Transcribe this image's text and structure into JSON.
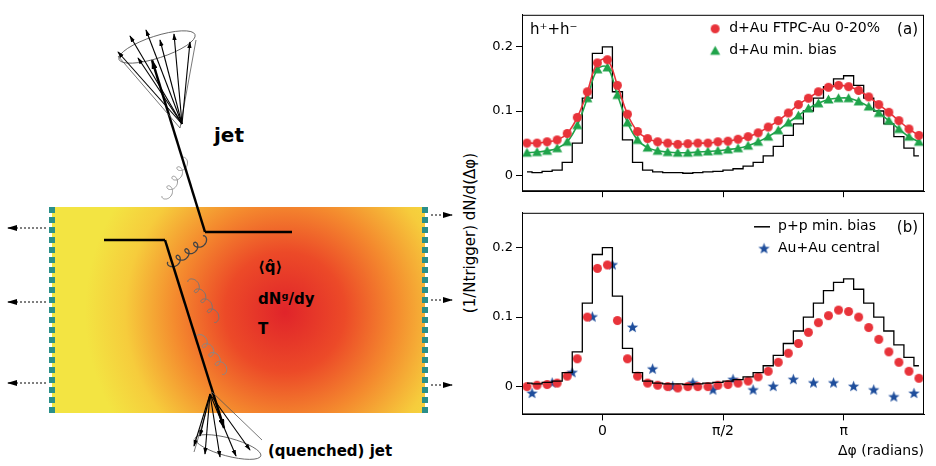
{
  "figure": {
    "y_label": "(1/Ntrigger) dN/d(Δφ)"
  },
  "diagram": {
    "jet_label": "jet",
    "medium_labels": [
      "⟨q̂⟩",
      "dNᵍ/dy",
      "T"
    ],
    "quenched_jet_label": "(quenched) jet"
  },
  "chart_data": [
    {
      "type": "scatter",
      "panel_label": "(a)",
      "annotation": "h⁺+h⁻",
      "xlim": [
        -1.047,
        4.189
      ],
      "xticks": [
        0,
        {
          "value": 1.571,
          "label": "π/2"
        },
        {
          "value": 3.142,
          "label": "π"
        }
      ],
      "ylim": [
        -0.025,
        0.25
      ],
      "yticks": [
        0,
        0.1,
        0.2
      ],
      "grid": false,
      "legend": "upper right",
      "tick_labels": "y",
      "series": [
        {
          "name": "d+Au FTPC-Au 0-20%",
          "color": "#e8333a",
          "marker": "circle",
          "line_style": "solid",
          "x": [
            -0.982,
            -0.851,
            -0.72,
            -0.589,
            -0.458,
            -0.327,
            -0.196,
            -0.065,
            0.065,
            0.196,
            0.327,
            0.458,
            0.589,
            0.72,
            0.851,
            0.982,
            1.113,
            1.243,
            1.374,
            1.505,
            1.636,
            1.767,
            1.898,
            2.029,
            2.16,
            2.291,
            2.422,
            2.553,
            2.683,
            2.814,
            2.945,
            3.076,
            3.207,
            3.338,
            3.469,
            3.6,
            3.731,
            3.862,
            3.993,
            4.123
          ],
          "values": [
            0.05,
            0.05,
            0.052,
            0.055,
            0.065,
            0.09,
            0.13,
            0.175,
            0.18,
            0.14,
            0.095,
            0.068,
            0.057,
            0.052,
            0.05,
            0.048,
            0.049,
            0.05,
            0.05,
            0.052,
            0.053,
            0.056,
            0.06,
            0.066,
            0.075,
            0.085,
            0.097,
            0.11,
            0.12,
            0.13,
            0.137,
            0.14,
            0.138,
            0.132,
            0.122,
            0.11,
            0.098,
            0.085,
            0.072,
            0.062
          ]
        },
        {
          "name": "d+Au min. bias",
          "color": "#1fa34a",
          "marker": "triangle",
          "line_style": "solid",
          "x": [
            -0.982,
            -0.851,
            -0.72,
            -0.589,
            -0.458,
            -0.327,
            -0.196,
            -0.065,
            0.065,
            0.196,
            0.327,
            0.458,
            0.589,
            0.72,
            0.851,
            0.982,
            1.113,
            1.243,
            1.374,
            1.505,
            1.636,
            1.767,
            1.898,
            2.029,
            2.16,
            2.291,
            2.422,
            2.553,
            2.683,
            2.814,
            2.945,
            3.076,
            3.207,
            3.338,
            3.469,
            3.6,
            3.731,
            3.862,
            3.993,
            4.123
          ],
          "values": [
            0.035,
            0.036,
            0.038,
            0.042,
            0.052,
            0.078,
            0.12,
            0.165,
            0.168,
            0.125,
            0.082,
            0.055,
            0.043,
            0.038,
            0.036,
            0.035,
            0.035,
            0.036,
            0.037,
            0.038,
            0.04,
            0.042,
            0.046,
            0.052,
            0.06,
            0.07,
            0.082,
            0.093,
            0.104,
            0.112,
            0.118,
            0.12,
            0.12,
            0.115,
            0.107,
            0.097,
            0.085,
            0.072,
            0.06,
            0.052
          ]
        },
        {
          "color": "#000000",
          "marker": "none",
          "line_style": "step",
          "x": [
            -0.982,
            -0.851,
            -0.72,
            -0.589,
            -0.458,
            -0.327,
            -0.196,
            -0.065,
            0.065,
            0.196,
            0.327,
            0.458,
            0.589,
            0.72,
            0.851,
            0.982,
            1.113,
            1.243,
            1.374,
            1.505,
            1.636,
            1.767,
            1.898,
            2.029,
            2.16,
            2.291,
            2.422,
            2.553,
            2.683,
            2.814,
            2.945,
            3.076,
            3.207,
            3.338,
            3.469,
            3.6,
            3.731,
            3.862,
            3.993,
            4.123
          ],
          "values": [
            0.005,
            0.004,
            0.006,
            0.008,
            0.02,
            0.05,
            0.12,
            0.19,
            0.2,
            0.13,
            0.055,
            0.02,
            0.008,
            0.005,
            0.004,
            0.004,
            0.003,
            0.004,
            0.005,
            0.006,
            0.008,
            0.01,
            0.014,
            0.02,
            0.03,
            0.045,
            0.062,
            0.08,
            0.1,
            0.12,
            0.138,
            0.15,
            0.155,
            0.14,
            0.12,
            0.1,
            0.08,
            0.06,
            0.042,
            0.03
          ]
        }
      ]
    },
    {
      "type": "scatter",
      "panel_label": "(b)",
      "x_label": "Δφ (radians)",
      "xlim": [
        -1.047,
        4.189
      ],
      "xticks": [
        0,
        {
          "value": 1.571,
          "label": "π/2"
        },
        {
          "value": 3.142,
          "label": "π"
        }
      ],
      "ylim": [
        -0.04,
        0.25
      ],
      "yticks": [
        0,
        0.1,
        0.2
      ],
      "grid": false,
      "legend": "upper right",
      "series": [
        {
          "name": "p+p min. bias",
          "color": "#000000",
          "marker": "none",
          "line_style": "step",
          "x": [
            -0.982,
            -0.851,
            -0.72,
            -0.589,
            -0.458,
            -0.327,
            -0.196,
            -0.065,
            0.065,
            0.196,
            0.327,
            0.458,
            0.589,
            0.72,
            0.851,
            0.982,
            1.113,
            1.243,
            1.374,
            1.505,
            1.636,
            1.767,
            1.898,
            2.029,
            2.16,
            2.291,
            2.422,
            2.553,
            2.683,
            2.814,
            2.945,
            3.076,
            3.207,
            3.338,
            3.469,
            3.6,
            3.731,
            3.862,
            3.993,
            4.123
          ],
          "values": [
            0.005,
            0.004,
            0.006,
            0.008,
            0.02,
            0.05,
            0.12,
            0.19,
            0.2,
            0.13,
            0.055,
            0.02,
            0.008,
            0.005,
            0.004,
            0.004,
            0.003,
            0.004,
            0.005,
            0.006,
            0.008,
            0.01,
            0.014,
            0.02,
            0.03,
            0.045,
            0.062,
            0.08,
            0.1,
            0.12,
            0.138,
            0.15,
            0.155,
            0.14,
            0.12,
            0.1,
            0.08,
            0.06,
            0.042,
            0.03
          ]
        },
        {
          "color": "#e8333a",
          "marker": "circle",
          "x": [
            -0.982,
            -0.851,
            -0.72,
            -0.589,
            -0.458,
            -0.327,
            -0.196,
            -0.065,
            0.065,
            0.196,
            0.327,
            0.458,
            0.589,
            0.72,
            0.851,
            0.982,
            1.113,
            1.243,
            1.374,
            1.505,
            1.636,
            1.767,
            1.898,
            2.029,
            2.16,
            2.291,
            2.422,
            2.553,
            2.683,
            2.814,
            2.945,
            3.076,
            3.207,
            3.338,
            3.469,
            3.6,
            3.731,
            3.862,
            3.993,
            4.123
          ],
          "values": [
            0.0,
            0.002,
            0.003,
            0.005,
            0.015,
            0.04,
            0.1,
            0.17,
            0.175,
            0.095,
            0.04,
            0.015,
            0.005,
            0.002,
            0.0,
            -0.002,
            0.0,
            0.0,
            0.0,
            0.002,
            0.003,
            0.005,
            0.008,
            0.014,
            0.022,
            0.035,
            0.048,
            0.062,
            0.078,
            0.092,
            0.102,
            0.11,
            0.108,
            0.1,
            0.085,
            0.068,
            0.05,
            0.035,
            0.022,
            0.012
          ]
        },
        {
          "name": "Au+Au central",
          "color": "#1f4e9c",
          "marker": "star",
          "x": [
            -0.916,
            -0.654,
            -0.393,
            -0.131,
            0.131,
            0.393,
            0.654,
            0.916,
            1.178,
            1.44,
            1.702,
            1.963,
            2.225,
            2.487,
            2.749,
            3.011,
            3.272,
            3.534,
            3.796,
            4.058
          ],
          "values": [
            -0.01,
            0.005,
            0.02,
            0.1,
            0.175,
            0.085,
            0.025,
            0.0,
            0.005,
            -0.005,
            0.01,
            -0.005,
            0.0,
            0.01,
            0.005,
            0.005,
            0.0,
            -0.005,
            -0.015,
            -0.01
          ]
        }
      ]
    }
  ]
}
